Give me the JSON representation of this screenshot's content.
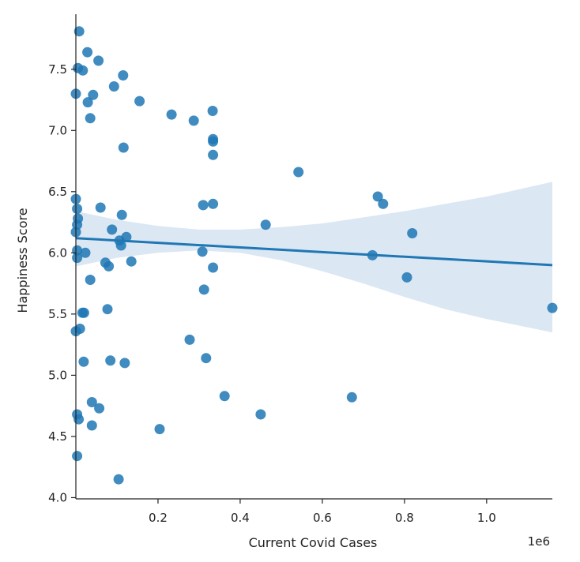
{
  "colors": {
    "point": "#1f77b4",
    "line": "#1f77b4",
    "band": "#dbe7f3",
    "axis": "#222222"
  },
  "chart_data": {
    "type": "scatter",
    "title": "",
    "xlabel": "Current Covid Cases",
    "ylabel": "Happiness Score",
    "offset_text": "1e6",
    "xlim": [
      0,
      1160000
    ],
    "ylim": [
      3.99,
      7.95
    ],
    "xticks": [
      200000,
      400000,
      600000,
      800000,
      1000000
    ],
    "xtick_labels": [
      "0.2",
      "0.4",
      "0.6",
      "0.8",
      "1.0"
    ],
    "yticks": [
      4.0,
      4.5,
      5.0,
      5.5,
      6.0,
      6.5,
      7.0,
      7.5
    ],
    "ytick_labels": [
      "4.0",
      "4.5",
      "5.0",
      "5.5",
      "6.0",
      "6.5",
      "7.0",
      "7.5"
    ],
    "regression": {
      "x": [
        0,
        1160000
      ],
      "y": [
        6.12,
        5.9
      ]
    },
    "ci_band": {
      "x": [
        0,
        100000,
        200000,
        300000,
        400000,
        500000,
        600000,
        700000,
        800000,
        900000,
        1000000,
        1160000
      ],
      "upper": [
        6.34,
        6.27,
        6.22,
        6.19,
        6.19,
        6.21,
        6.24,
        6.29,
        6.34,
        6.4,
        6.46,
        6.58
      ],
      "lower": [
        5.89,
        5.96,
        6.0,
        6.02,
        6.0,
        5.94,
        5.85,
        5.75,
        5.64,
        5.54,
        5.46,
        5.35
      ]
    },
    "points": [
      {
        "x": 8000,
        "y": 7.81
      },
      {
        "x": 28000,
        "y": 7.64
      },
      {
        "x": 55000,
        "y": 7.57
      },
      {
        "x": 5000,
        "y": 7.51
      },
      {
        "x": 17000,
        "y": 7.49
      },
      {
        "x": 115000,
        "y": 7.45
      },
      {
        "x": 93000,
        "y": 7.36
      },
      {
        "x": 0,
        "y": 7.3
      },
      {
        "x": 42000,
        "y": 7.29
      },
      {
        "x": 155000,
        "y": 7.24
      },
      {
        "x": 29000,
        "y": 7.23
      },
      {
        "x": 333000,
        "y": 7.16
      },
      {
        "x": 233000,
        "y": 7.13
      },
      {
        "x": 35000,
        "y": 7.1
      },
      {
        "x": 287000,
        "y": 7.08
      },
      {
        "x": 334000,
        "y": 6.93
      },
      {
        "x": 334000,
        "y": 6.91
      },
      {
        "x": 116000,
        "y": 6.86
      },
      {
        "x": 334000,
        "y": 6.8
      },
      {
        "x": 542000,
        "y": 6.66
      },
      {
        "x": 735000,
        "y": 6.46
      },
      {
        "x": 0,
        "y": 6.44
      },
      {
        "x": 748000,
        "y": 6.4
      },
      {
        "x": 334000,
        "y": 6.4
      },
      {
        "x": 310000,
        "y": 6.39
      },
      {
        "x": 60000,
        "y": 6.37
      },
      {
        "x": 3000,
        "y": 6.36
      },
      {
        "x": 112000,
        "y": 6.31
      },
      {
        "x": 5000,
        "y": 6.28
      },
      {
        "x": 3000,
        "y": 6.23
      },
      {
        "x": 462000,
        "y": 6.23
      },
      {
        "x": 88000,
        "y": 6.19
      },
      {
        "x": 0,
        "y": 6.17
      },
      {
        "x": 819000,
        "y": 6.16
      },
      {
        "x": 123000,
        "y": 6.13
      },
      {
        "x": 106000,
        "y": 6.1
      },
      {
        "x": 110000,
        "y": 6.06
      },
      {
        "x": 3000,
        "y": 6.02
      },
      {
        "x": 308000,
        "y": 6.01
      },
      {
        "x": 23000,
        "y": 6.0
      },
      {
        "x": 722000,
        "y": 5.98
      },
      {
        "x": 3000,
        "y": 5.96
      },
      {
        "x": 135000,
        "y": 5.93
      },
      {
        "x": 72000,
        "y": 5.92
      },
      {
        "x": 80000,
        "y": 5.89
      },
      {
        "x": 334000,
        "y": 5.88
      },
      {
        "x": 806000,
        "y": 5.8
      },
      {
        "x": 35000,
        "y": 5.78
      },
      {
        "x": 312000,
        "y": 5.7
      },
      {
        "x": 1160000,
        "y": 5.55
      },
      {
        "x": 77000,
        "y": 5.54
      },
      {
        "x": 16000,
        "y": 5.51
      },
      {
        "x": 20000,
        "y": 5.51
      },
      {
        "x": 10000,
        "y": 5.38
      },
      {
        "x": 0,
        "y": 5.36
      },
      {
        "x": 277000,
        "y": 5.29
      },
      {
        "x": 317000,
        "y": 5.14
      },
      {
        "x": 84000,
        "y": 5.12
      },
      {
        "x": 19000,
        "y": 5.11
      },
      {
        "x": 119000,
        "y": 5.1
      },
      {
        "x": 362000,
        "y": 4.83
      },
      {
        "x": 672000,
        "y": 4.82
      },
      {
        "x": 39000,
        "y": 4.78
      },
      {
        "x": 57000,
        "y": 4.73
      },
      {
        "x": 3000,
        "y": 4.68
      },
      {
        "x": 450000,
        "y": 4.68
      },
      {
        "x": 7000,
        "y": 4.64
      },
      {
        "x": 39000,
        "y": 4.59
      },
      {
        "x": 204000,
        "y": 4.56
      },
      {
        "x": 3000,
        "y": 4.34
      },
      {
        "x": 104000,
        "y": 4.15
      }
    ]
  }
}
